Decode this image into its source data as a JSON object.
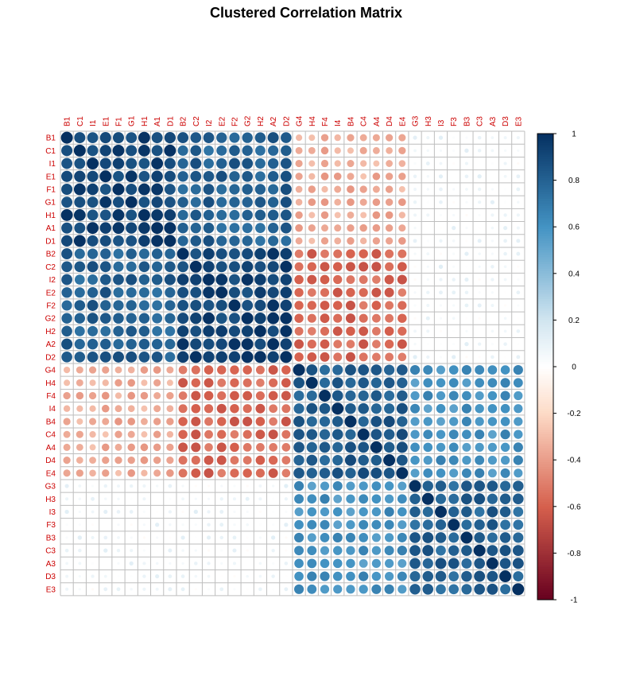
{
  "chart_data": {
    "type": "heatmap",
    "title": "Clustered Correlation Matrix",
    "variables": [
      "B1",
      "C1",
      "I1",
      "E1",
      "F1",
      "G1",
      "H1",
      "A1",
      "D1",
      "B2",
      "C2",
      "I2",
      "E2",
      "F2",
      "G2",
      "H2",
      "A2",
      "D2",
      "G4",
      "H4",
      "F4",
      "I4",
      "B4",
      "C4",
      "A4",
      "D4",
      "E4",
      "G3",
      "H3",
      "I3",
      "F3",
      "B3",
      "C3",
      "A3",
      "D3",
      "E3"
    ],
    "groups": [
      {
        "start": 0,
        "end": 9
      },
      {
        "start": 9,
        "end": 18
      },
      {
        "start": 18,
        "end": 27
      },
      {
        "start": 27,
        "end": 36
      }
    ],
    "block_correlations": [
      [
        0.93,
        0.8,
        -0.35,
        0.05
      ],
      [
        0.8,
        0.93,
        -0.58,
        0.05
      ],
      [
        -0.35,
        -0.58,
        0.82,
        0.6
      ],
      [
        0.05,
        0.05,
        0.6,
        0.8
      ]
    ],
    "diagonal_value": 1,
    "colorbar": {
      "ticks": [
        "1",
        "0.8",
        "0.6",
        "0.4",
        "0.2",
        "0",
        "-0.2",
        "-0.4",
        "-0.6",
        "-0.8",
        "-1"
      ],
      "range": [
        -1,
        1
      ],
      "colors": {
        "neg_strong": "#67001F",
        "neg_mid": "#D6604D",
        "neg_light": "#FDDBC7",
        "neutral": "#FFFFFF",
        "pos_light": "#D1E5F0",
        "pos_mid": "#4393C3",
        "pos_strong": "#053061"
      }
    },
    "label_color": "#CC0000",
    "grid_color": "#BEBEBE"
  }
}
